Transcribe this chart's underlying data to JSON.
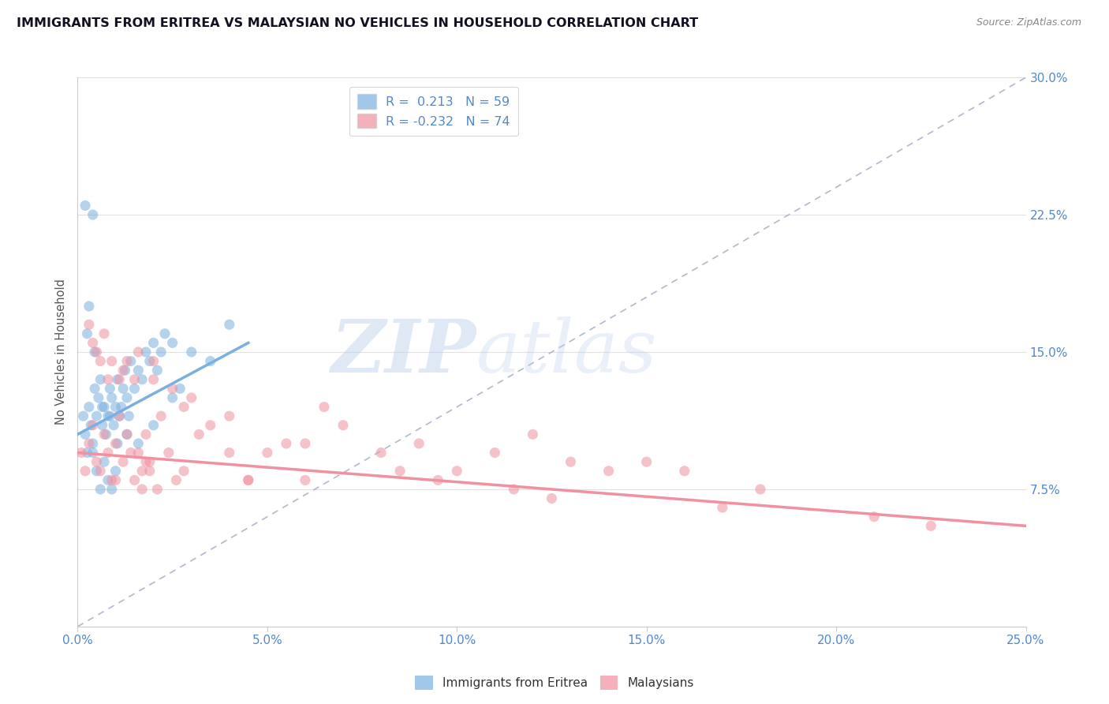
{
  "title": "IMMIGRANTS FROM ERITREA VS MALAYSIAN NO VEHICLES IN HOUSEHOLD CORRELATION CHART",
  "source": "Source: ZipAtlas.com",
  "ylabel": "No Vehicles in Household",
  "xlim": [
    0.0,
    25.0
  ],
  "ylim": [
    0.0,
    30.0
  ],
  "xtick_vals": [
    0.0,
    5.0,
    10.0,
    15.0,
    20.0,
    25.0
  ],
  "xtick_labels": [
    "0.0%",
    "5.0%",
    "10.0%",
    "15.0%",
    "20.0%",
    "25.0%"
  ],
  "ytick_vals": [
    7.5,
    15.0,
    22.5,
    30.0
  ],
  "ytick_labels": [
    "7.5%",
    "15.0%",
    "22.5%",
    "30.0%"
  ],
  "legend_entries": [
    "R =  0.213   N = 59",
    "R = -0.232   N = 74"
  ],
  "legend_labels_bottom": [
    "Immigrants from Eritrea",
    "Malaysians"
  ],
  "watermark_zip": "ZIP",
  "watermark_atlas": "atlas",
  "watermark_color": "#c5d8ef",
  "blue_scatter_x": [
    0.15,
    0.2,
    0.25,
    0.3,
    0.35,
    0.4,
    0.45,
    0.5,
    0.55,
    0.6,
    0.65,
    0.7,
    0.75,
    0.8,
    0.85,
    0.9,
    0.95,
    1.0,
    1.05,
    1.1,
    1.15,
    1.2,
    1.25,
    1.3,
    1.35,
    1.4,
    1.5,
    1.6,
    1.7,
    1.8,
    1.9,
    2.0,
    2.1,
    2.2,
    2.3,
    2.5,
    2.7,
    3.0,
    3.5,
    4.0,
    0.2,
    0.3,
    0.4,
    0.5,
    0.6,
    0.7,
    0.8,
    0.9,
    1.0,
    0.25,
    0.45,
    0.65,
    0.85,
    1.05,
    1.3,
    1.6,
    2.0,
    2.5,
    0.4
  ],
  "blue_scatter_y": [
    11.5,
    10.5,
    9.5,
    12.0,
    11.0,
    10.0,
    13.0,
    11.5,
    12.5,
    13.5,
    11.0,
    12.0,
    10.5,
    11.5,
    13.0,
    12.5,
    11.0,
    12.0,
    13.5,
    11.5,
    12.0,
    13.0,
    14.0,
    12.5,
    11.5,
    14.5,
    13.0,
    14.0,
    13.5,
    15.0,
    14.5,
    15.5,
    14.0,
    15.0,
    16.0,
    15.5,
    13.0,
    15.0,
    14.5,
    16.5,
    23.0,
    17.5,
    9.5,
    8.5,
    7.5,
    9.0,
    8.0,
    7.5,
    8.5,
    16.0,
    15.0,
    12.0,
    11.5,
    10.0,
    10.5,
    10.0,
    11.0,
    12.5,
    22.5
  ],
  "pink_scatter_x": [
    0.1,
    0.2,
    0.3,
    0.4,
    0.5,
    0.6,
    0.7,
    0.8,
    0.9,
    1.0,
    1.1,
    1.2,
    1.3,
    1.4,
    1.5,
    1.6,
    1.7,
    1.8,
    1.9,
    2.0,
    2.2,
    2.4,
    2.6,
    2.8,
    3.0,
    3.5,
    4.0,
    4.5,
    5.0,
    5.5,
    6.0,
    7.0,
    8.0,
    9.0,
    10.0,
    11.0,
    12.0,
    13.0,
    14.0,
    15.0,
    16.0,
    18.0,
    21.0,
    0.3,
    0.5,
    0.7,
    0.9,
    1.1,
    1.3,
    1.5,
    1.7,
    1.9,
    2.1,
    2.5,
    3.2,
    4.5,
    6.5,
    9.5,
    12.5,
    0.4,
    0.6,
    0.8,
    1.2,
    1.6,
    2.0,
    2.8,
    4.0,
    6.0,
    8.5,
    11.5,
    17.0,
    22.5,
    1.0,
    1.8
  ],
  "pink_scatter_y": [
    9.5,
    8.5,
    10.0,
    11.0,
    9.0,
    8.5,
    10.5,
    9.5,
    8.0,
    10.0,
    11.5,
    9.0,
    10.5,
    9.5,
    8.0,
    9.5,
    8.5,
    10.5,
    9.0,
    13.5,
    11.5,
    9.5,
    8.0,
    8.5,
    12.5,
    11.0,
    9.5,
    8.0,
    9.5,
    10.0,
    8.0,
    11.0,
    9.5,
    10.0,
    8.5,
    9.5,
    10.5,
    9.0,
    8.5,
    9.0,
    8.5,
    7.5,
    6.0,
    16.5,
    15.0,
    16.0,
    14.5,
    13.5,
    14.5,
    13.5,
    7.5,
    8.5,
    7.5,
    13.0,
    10.5,
    8.0,
    12.0,
    8.0,
    7.0,
    15.5,
    14.5,
    13.5,
    14.0,
    15.0,
    14.5,
    12.0,
    11.5,
    10.0,
    8.5,
    7.5,
    6.5,
    5.5,
    8.0,
    9.0
  ],
  "blue_line_x": [
    0.0,
    4.5
  ],
  "blue_line_y": [
    10.5,
    15.5
  ],
  "pink_line_x": [
    0.0,
    25.0
  ],
  "pink_line_y": [
    9.5,
    5.5
  ],
  "ref_line_x": [
    0.0,
    25.0
  ],
  "ref_line_y": [
    0.0,
    30.0
  ],
  "blue_color": "#7ab0e0",
  "pink_color": "#f090a0",
  "axis_label_color": "#5588cc",
  "grid_color": "#e0e0e0",
  "title_fontsize": 11.5,
  "tick_fontsize": 11
}
